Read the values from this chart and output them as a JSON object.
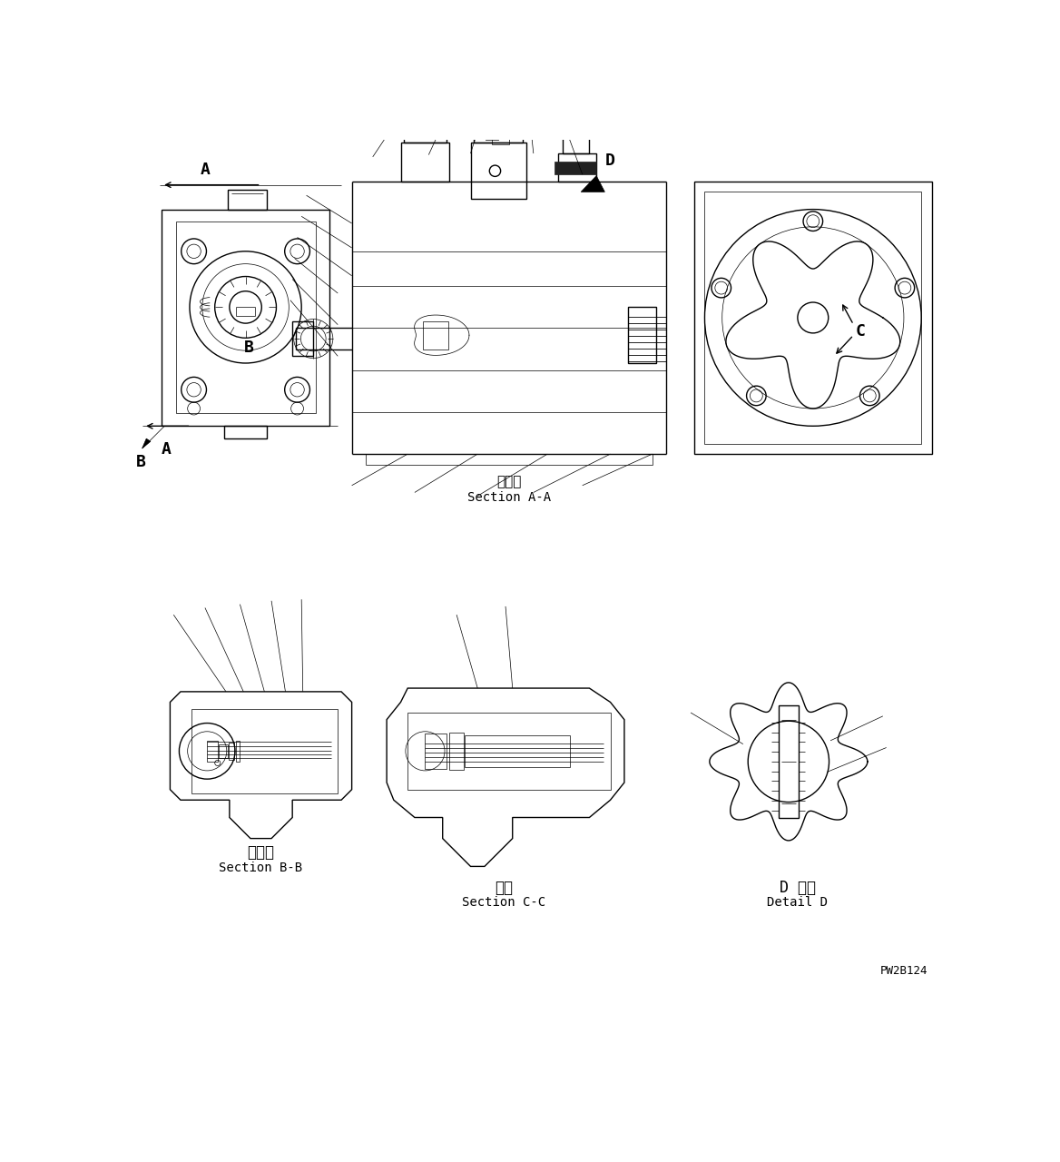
{
  "bg_color": "#ffffff",
  "line_color": "#000000",
  "label_A_top": "A",
  "label_A_bottom": "A",
  "label_B_left": "B",
  "label_B_inner": "B",
  "label_C": "C",
  "label_D": "D",
  "section_aa_jp": "断　面",
  "section_aa_en": "Section A-A",
  "section_bb_jp": "断　面",
  "section_bb_en": "Section B-B",
  "section_cc_jp": "断面",
  "section_cc_en": "Section C-C",
  "detail_d_jp": "D 詳細",
  "detail_d_en": "Detail D",
  "part_number": "PW2B124",
  "lw": 1.0,
  "lw_thin": 0.5,
  "lw_thick": 1.5,
  "lw_heavy": 2.5
}
